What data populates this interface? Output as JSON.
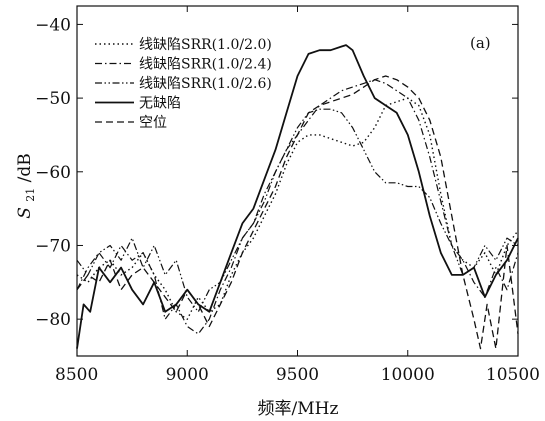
{
  "chart_data": {
    "type": "line",
    "xlabel": "频率/MHz",
    "ylabel_main": "S",
    "ylabel_sub": "21",
    "ylabel_unit": "/dB",
    "panel_label": "(a)",
    "xlim": [
      8500,
      10500
    ],
    "ylim": [
      -85,
      -37.5
    ],
    "x_ticks": [
      8500,
      9000,
      9500,
      10000,
      10500
    ],
    "y_ticks": [
      -80,
      -70,
      -60,
      -50,
      -40
    ],
    "x_tick_labels": [
      "8500",
      "9000",
      "9500",
      "10000",
      "10500"
    ],
    "y_tick_labels": [
      "−80",
      "−70",
      "−60",
      "−50",
      "−40"
    ],
    "grid": false,
    "legend_position": "top-left",
    "series": [
      {
        "name": "线缺陷SRR(1.0/2.0)",
        "style": "dotted",
        "x": [
          8500,
          8550,
          8600,
          8650,
          8700,
          8750,
          8800,
          8850,
          8900,
          8950,
          9000,
          9050,
          9100,
          9150,
          9200,
          9250,
          9300,
          9350,
          9400,
          9450,
          9500,
          9550,
          9600,
          9650,
          9700,
          9750,
          9800,
          9850,
          9900,
          9950,
          10000,
          10050,
          10100,
          10150,
          10200,
          10250,
          10300,
          10350,
          10400,
          10450,
          10500
        ],
        "values": [
          -74,
          -75,
          -73,
          -72,
          -74,
          -73,
          -71,
          -74,
          -76,
          -79,
          -80,
          -77,
          -79,
          -78,
          -74,
          -71,
          -69,
          -66,
          -63,
          -59,
          -56,
          -55,
          -55,
          -55.5,
          -56,
          -56.5,
          -56,
          -54,
          -51,
          -50.5,
          -50,
          -51,
          -55,
          -63,
          -70,
          -72,
          -73,
          -71,
          -74,
          -70,
          -68
        ]
      },
      {
        "name": "线缺陷SRR(1.0/2.4)",
        "style": "dash-dot",
        "x": [
          8500,
          8550,
          8600,
          8650,
          8700,
          8750,
          8800,
          8850,
          8900,
          8950,
          9000,
          9050,
          9100,
          9150,
          9200,
          9250,
          9300,
          9350,
          9400,
          9450,
          9500,
          9550,
          9600,
          9650,
          9700,
          9750,
          9800,
          9850,
          9900,
          9950,
          10000,
          10050,
          10100,
          10150,
          10200,
          10250,
          10300,
          10350,
          10400,
          10450,
          10500
        ],
        "values": [
          -76,
          -73,
          -71,
          -73,
          -70,
          -72,
          -71,
          -74,
          -80,
          -78,
          -81,
          -82,
          -80,
          -76,
          -73,
          -69,
          -67,
          -63,
          -60,
          -57,
          -55,
          -53,
          -51,
          -50,
          -49,
          -48.5,
          -48,
          -47.5,
          -48,
          -49,
          -50,
          -53,
          -58,
          -64,
          -70,
          -72,
          -75,
          -77,
          -73,
          -76,
          -71
        ]
      },
      {
        "name": "线缺陷SRR(1.0/2.6)",
        "style": "dash-dot-dot",
        "x": [
          8500,
          8550,
          8600,
          8650,
          8700,
          8750,
          8800,
          8850,
          8900,
          8950,
          9000,
          9050,
          9100,
          9150,
          9200,
          9250,
          9300,
          9350,
          9400,
          9450,
          9500,
          9550,
          9600,
          9650,
          9700,
          9750,
          9800,
          9850,
          9900,
          9950,
          10000,
          10050,
          10100,
          10150,
          10200,
          10250,
          10300,
          10350,
          10400,
          10450,
          10500
        ],
        "values": [
          -72,
          -74,
          -71,
          -70,
          -72,
          -69,
          -73,
          -70,
          -74,
          -72,
          -77,
          -79,
          -76,
          -75,
          -72,
          -69,
          -67,
          -64,
          -60,
          -57,
          -54,
          -52,
          -51.5,
          -51.5,
          -52,
          -54,
          -57,
          -60,
          -61.5,
          -61.5,
          -62,
          -62,
          -63.5,
          -67,
          -70,
          -74,
          -73,
          -70,
          -72,
          -69,
          -70
        ]
      },
      {
        "name": "无缺陷",
        "style": "solid",
        "x": [
          8500,
          8530,
          8560,
          8600,
          8650,
          8700,
          8750,
          8800,
          8850,
          8900,
          8950,
          9000,
          9050,
          9100,
          9150,
          9200,
          9250,
          9300,
          9350,
          9400,
          9450,
          9500,
          9550,
          9600,
          9650,
          9700,
          9720,
          9750,
          9800,
          9850,
          9900,
          9950,
          10000,
          10050,
          10100,
          10150,
          10200,
          10250,
          10300,
          10350,
          10400,
          10450,
          10500
        ],
        "values": [
          -84,
          -78,
          -79,
          -73,
          -75,
          -73,
          -76,
          -78,
          -75,
          -79,
          -78,
          -76,
          -78,
          -79,
          -75,
          -71,
          -67,
          -65,
          -61,
          -57,
          -52,
          -47,
          -44,
          -43.5,
          -43.5,
          -43,
          -42.8,
          -43.5,
          -47,
          -50,
          -51,
          -52,
          -55,
          -60,
          -66,
          -71,
          -74,
          -74,
          -73,
          -77,
          -74,
          -72,
          -69
        ]
      },
      {
        "name": "空位",
        "style": "dashed",
        "x": [
          8500,
          8550,
          8600,
          8650,
          8700,
          8750,
          8800,
          8850,
          8900,
          8950,
          9000,
          9050,
          9100,
          9150,
          9200,
          9250,
          9300,
          9350,
          9400,
          9450,
          9500,
          9550,
          9600,
          9650,
          9700,
          9750,
          9800,
          9850,
          9900,
          9950,
          10000,
          10050,
          10100,
          10150,
          10200,
          10250,
          10300,
          10330,
          10360,
          10400,
          10450,
          10500
        ],
        "values": [
          -76,
          -74,
          -75,
          -72,
          -76,
          -74,
          -73,
          -75,
          -77,
          -79,
          -76,
          -78,
          -81,
          -78,
          -75,
          -71,
          -68,
          -65,
          -62,
          -58,
          -55,
          -52,
          -51,
          -50.5,
          -50,
          -49.5,
          -48.5,
          -47.5,
          -47,
          -47.5,
          -48.5,
          -50,
          -53,
          -58,
          -66,
          -74,
          -80,
          -84,
          -78,
          -84,
          -70,
          -82
        ]
      }
    ]
  }
}
